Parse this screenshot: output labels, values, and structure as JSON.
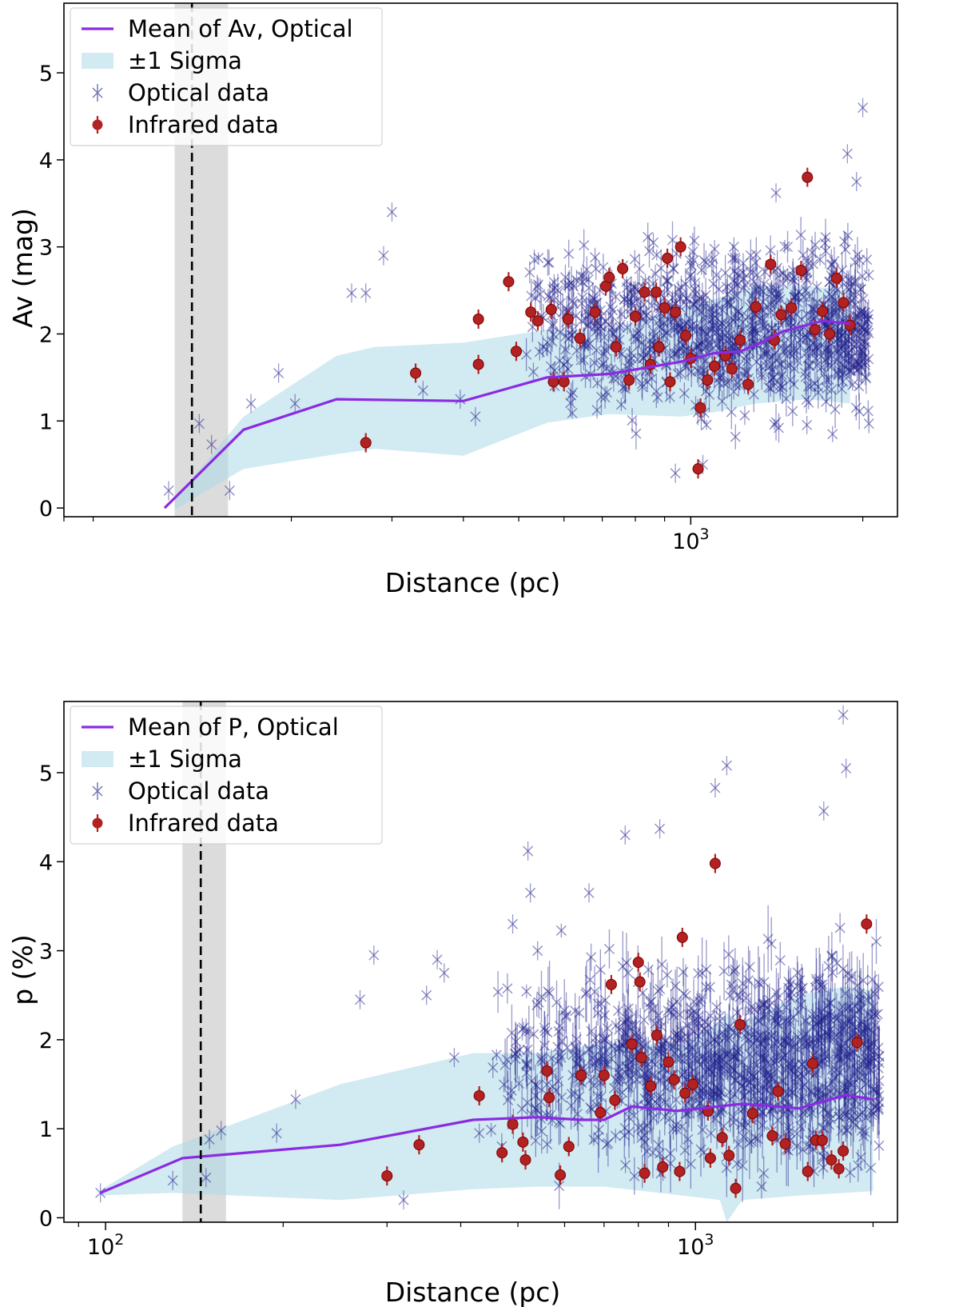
{
  "colors": {
    "mean_line": "#8a2be2",
    "sigma_fill": "#add8e6",
    "optical": "#1f1f8c",
    "infrared": "#b22222",
    "cloud_band": "#d3d3d3"
  },
  "chart_data": [
    {
      "type": "scatter",
      "xscale": "log",
      "xlabel": "Distance (pc)",
      "ylabel": "Av (mag)",
      "xlim": [
        80,
        2300
      ],
      "ylim": [
        -0.1,
        5.8
      ],
      "x_ticks": [
        {
          "value": 1000,
          "base": "10",
          "exp": "3"
        }
      ],
      "y_ticks": [
        0,
        1,
        2,
        3,
        4,
        5
      ],
      "legend": {
        "placement": "top-left",
        "entries": [
          "Mean of Av, Optical",
          "±1 Sigma",
          "Optical data",
          "Infrared data"
        ]
      },
      "cloud_distance": 134,
      "cloud_band": [
        125,
        155
      ],
      "mean": {
        "x": [
          120,
          165,
          240,
          400,
          560,
          720,
          960,
          1100,
          1220,
          1300,
          1450,
          1700,
          1900
        ],
        "y": [
          0.0,
          0.9,
          1.25,
          1.23,
          1.5,
          1.54,
          1.68,
          1.78,
          1.8,
          1.87,
          2.03,
          2.15,
          2.12
        ]
      },
      "sigma": {
        "x": [
          125,
          165,
          240,
          280,
          400,
          560,
          720,
          960,
          1100,
          1300,
          1600,
          1900
        ],
        "lower": [
          -0.02,
          0.45,
          0.62,
          0.68,
          0.6,
          0.98,
          1.08,
          1.05,
          1.1,
          1.2,
          1.25,
          1.2
        ],
        "upper": [
          0.1,
          1.05,
          1.75,
          1.85,
          1.9,
          2.05,
          2.05,
          2.3,
          2.4,
          2.55,
          2.55,
          2.5
        ]
      },
      "optical_highlights": [
        [
          122,
          0.2
        ],
        [
          138,
          0.97
        ],
        [
          145,
          0.73
        ],
        [
          156,
          0.2
        ],
        [
          170,
          1.2
        ],
        [
          190,
          1.55
        ],
        [
          203,
          1.2
        ],
        [
          255,
          2.47
        ],
        [
          270,
          2.47
        ],
        [
          290,
          2.9
        ],
        [
          300,
          3.4
        ],
        [
          340,
          1.35
        ],
        [
          395,
          1.25
        ],
        [
          420,
          1.05
        ],
        [
          1050,
          0.5
        ],
        [
          940,
          0.4
        ],
        [
          2000,
          4.6
        ],
        [
          1880,
          4.07
        ],
        [
          1950,
          3.75
        ],
        [
          1410,
          3.62
        ],
        [
          1190,
          3.0
        ],
        [
          860,
          3.05
        ],
        [
          680,
          2.88
        ],
        [
          2050,
          0.97
        ]
      ],
      "optical_cloud": {
        "count": 950,
        "xmin": 500,
        "xmax": 2050,
        "ymin": 0.7,
        "ymax": 3.4,
        "seed": 7
      },
      "infrared": [
        [
          270,
          0.75
        ],
        [
          330,
          1.55
        ],
        [
          425,
          1.65
        ],
        [
          425,
          2.17
        ],
        [
          480,
          2.6
        ],
        [
          495,
          1.8
        ],
        [
          525,
          2.25
        ],
        [
          540,
          2.15
        ],
        [
          570,
          2.28
        ],
        [
          575,
          1.45
        ],
        [
          600,
          1.45
        ],
        [
          610,
          2.17
        ],
        [
          640,
          1.95
        ],
        [
          680,
          2.25
        ],
        [
          710,
          2.55
        ],
        [
          720,
          2.65
        ],
        [
          740,
          1.85
        ],
        [
          760,
          2.75
        ],
        [
          780,
          1.47
        ],
        [
          800,
          2.2
        ],
        [
          830,
          2.48
        ],
        [
          850,
          1.65
        ],
        [
          870,
          2.48
        ],
        [
          880,
          1.85
        ],
        [
          900,
          2.3
        ],
        [
          910,
          2.87
        ],
        [
          920,
          1.45
        ],
        [
          940,
          2.25
        ],
        [
          960,
          3.0
        ],
        [
          980,
          1.98
        ],
        [
          1000,
          1.72
        ],
        [
          1030,
          0.45
        ],
        [
          1040,
          1.15
        ],
        [
          1070,
          1.47
        ],
        [
          1100,
          1.63
        ],
        [
          1150,
          1.75
        ],
        [
          1180,
          1.6
        ],
        [
          1220,
          1.93
        ],
        [
          1260,
          1.42
        ],
        [
          1300,
          2.31
        ],
        [
          1380,
          2.8
        ],
        [
          1400,
          1.93
        ],
        [
          1440,
          2.22
        ],
        [
          1500,
          2.3
        ],
        [
          1560,
          2.73
        ],
        [
          1600,
          3.8
        ],
        [
          1650,
          2.05
        ],
        [
          1700,
          2.26
        ],
        [
          1750,
          2.0
        ],
        [
          1800,
          2.64
        ],
        [
          1850,
          2.36
        ],
        [
          1900,
          2.1
        ]
      ]
    },
    {
      "type": "scatter",
      "xscale": "log",
      "xlabel": "Distance (pc)",
      "ylabel": "p (%)",
      "xlim": [
        85,
        2200
      ],
      "ylim": [
        -0.05,
        5.8
      ],
      "x_ticks": [
        {
          "value": 100,
          "base": "10",
          "exp": "2"
        },
        {
          "value": 1000,
          "base": "10",
          "exp": "3"
        }
      ],
      "y_ticks": [
        0,
        1,
        2,
        3,
        4,
        5
      ],
      "legend": {
        "placement": "top-left",
        "entries": [
          "Mean of P, Optical",
          "±1 Sigma",
          "Optical data",
          "Infrared data"
        ]
      },
      "cloud_distance": 145,
      "cloud_band": [
        135,
        160
      ],
      "mean": {
        "x": [
          98,
          135,
          250,
          420,
          540,
          640,
          700,
          780,
          930,
          1200,
          1500,
          1800,
          2000
        ],
        "y": [
          0.28,
          0.67,
          0.82,
          1.1,
          1.13,
          1.1,
          1.1,
          1.25,
          1.2,
          1.28,
          1.23,
          1.38,
          1.33
        ]
      },
      "sigma": {
        "x": [
          98,
          130,
          250,
          420,
          540,
          700,
          950,
          1100,
          1130,
          1200,
          1500,
          1800,
          2000
        ],
        "lower": [
          0.25,
          0.28,
          0.2,
          0.32,
          0.35,
          0.35,
          0.25,
          0.2,
          -0.05,
          0.2,
          0.25,
          0.28,
          0.3
        ],
        "upper": [
          0.31,
          0.8,
          1.5,
          1.85,
          1.85,
          1.95,
          1.95,
          2.2,
          2.3,
          2.2,
          2.5,
          2.6,
          2.55
        ]
      },
      "optical_highlights": [
        [
          98,
          0.28
        ],
        [
          130,
          0.42
        ],
        [
          148,
          0.45
        ],
        [
          150,
          0.88
        ],
        [
          157,
          0.98
        ],
        [
          195,
          0.95
        ],
        [
          210,
          1.33
        ],
        [
          270,
          2.45
        ],
        [
          285,
          2.95
        ],
        [
          350,
          2.5
        ],
        [
          365,
          2.9
        ],
        [
          375,
          2.75
        ],
        [
          390,
          1.8
        ],
        [
          490,
          3.3
        ],
        [
          520,
          4.12
        ],
        [
          525,
          3.65
        ],
        [
          540,
          3.0
        ],
        [
          660,
          3.65
        ],
        [
          760,
          4.3
        ],
        [
          870,
          4.37
        ],
        [
          1080,
          4.83
        ],
        [
          1130,
          5.08
        ],
        [
          1650,
          4.57
        ],
        [
          1780,
          5.65
        ],
        [
          1800,
          5.05
        ],
        [
          320,
          0.2
        ],
        [
          430,
          0.95
        ]
      ],
      "optical_cloud": {
        "count": 1050,
        "xmin": 450,
        "xmax": 2050,
        "ymin": 0.2,
        "ymax": 3.3,
        "seed": 11
      },
      "infrared": [
        [
          300,
          0.47
        ],
        [
          340,
          0.82
        ],
        [
          430,
          1.37
        ],
        [
          470,
          0.73
        ],
        [
          490,
          1.05
        ],
        [
          510,
          0.85
        ],
        [
          515,
          0.65
        ],
        [
          560,
          1.65
        ],
        [
          565,
          1.35
        ],
        [
          590,
          0.48
        ],
        [
          610,
          0.8
        ],
        [
          640,
          1.6
        ],
        [
          690,
          1.18
        ],
        [
          700,
          1.6
        ],
        [
          720,
          2.62
        ],
        [
          730,
          1.32
        ],
        [
          780,
          1.95
        ],
        [
          800,
          2.87
        ],
        [
          805,
          2.65
        ],
        [
          810,
          1.8
        ],
        [
          820,
          0.5
        ],
        [
          840,
          1.48
        ],
        [
          860,
          2.05
        ],
        [
          880,
          0.57
        ],
        [
          900,
          1.75
        ],
        [
          920,
          1.55
        ],
        [
          940,
          0.52
        ],
        [
          950,
          3.15
        ],
        [
          960,
          1.4
        ],
        [
          990,
          1.5
        ],
        [
          1050,
          1.2
        ],
        [
          1060,
          0.67
        ],
        [
          1080,
          3.98
        ],
        [
          1110,
          0.9
        ],
        [
          1140,
          0.7
        ],
        [
          1170,
          0.33
        ],
        [
          1190,
          2.17
        ],
        [
          1250,
          1.17
        ],
        [
          1350,
          0.92
        ],
        [
          1380,
          1.42
        ],
        [
          1420,
          0.83
        ],
        [
          1550,
          0.52
        ],
        [
          1580,
          1.73
        ],
        [
          1600,
          0.87
        ],
        [
          1640,
          0.87
        ],
        [
          1700,
          0.65
        ],
        [
          1750,
          0.55
        ],
        [
          1780,
          0.75
        ],
        [
          1880,
          1.97
        ],
        [
          1950,
          3.3
        ]
      ]
    }
  ]
}
